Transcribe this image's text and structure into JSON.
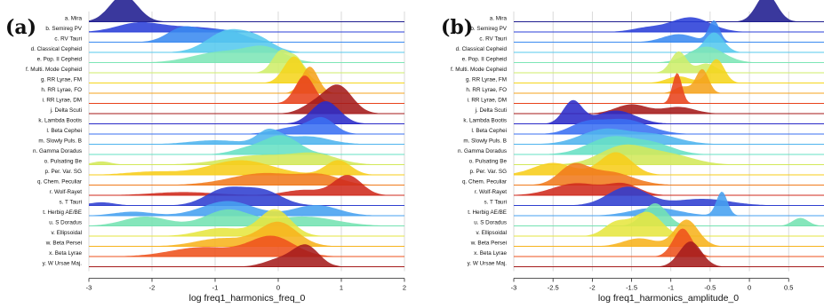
{
  "figure": {
    "panels": [
      {
        "letter": "(a)",
        "xlabel": "log freq1_harmonics_freq_0"
      },
      {
        "letter": "(b)",
        "xlabel": "log freq1_harmonics_amplitude_0"
      }
    ]
  },
  "chart_data": [
    {
      "type": "area",
      "subtype": "ridgeline",
      "panel": "(a)",
      "title": "",
      "xlabel": "log freq1_harmonics_freq_0",
      "ylabel": "",
      "xlim": [
        -3,
        2
      ],
      "xticks": [
        "-3",
        "-2",
        "-1",
        "0",
        "1",
        "2"
      ],
      "grid": true,
      "categories": [
        "a. Mira",
        "b. Semireg PV",
        "c. RV Tauri",
        "d. Classical Cepheid",
        "e. Pop. II Cepheid",
        "f. Multi. Mode Cepheid",
        "g. RR Lyrae, FM",
        "h. RR Lyrae, FO",
        "i. RR Lyrae, DM",
        "j. Delta Scuti",
        "k. Lambda Bootis",
        "l. Beta Cephei",
        "m. Slowly Puls. B",
        "n. Gamma Doradus",
        "o. Pulsating Be",
        "p. Per. Var. SG",
        "q. Chem. Peculiar",
        "r. Wolf-Rayet",
        "s. T Tauri",
        "t. Herbig AE/BE",
        "u. S Doradus",
        "v. Ellipsoidal",
        "w. Beta Persei",
        "x. Beta Lyrae",
        "y. W Ursae Maj."
      ],
      "series": [
        {
          "name": "a. Mira",
          "components": [
            [
              -2.45,
              0.22,
              1.0
            ]
          ]
        },
        {
          "name": "b. Semireg PV",
          "components": [
            [
              -2.2,
              0.35,
              0.35
            ],
            [
              -1.35,
              0.4,
              0.18
            ]
          ]
        },
        {
          "name": "c. RV Tauri",
          "components": [
            [
              -1.5,
              0.25,
              0.55
            ],
            [
              -0.85,
              0.3,
              0.45
            ]
          ]
        },
        {
          "name": "d. Classical Cepheid",
          "components": [
            [
              -0.8,
              0.32,
              0.8
            ],
            [
              -0.3,
              0.25,
              0.4
            ]
          ]
        },
        {
          "name": "e. Pop. II Cepheid",
          "components": [
            [
              -0.9,
              0.45,
              0.4
            ],
            [
              -0.2,
              0.3,
              0.5
            ]
          ]
        },
        {
          "name": "f. Multi. Mode Cepheid",
          "components": [
            [
              0.05,
              0.14,
              0.85
            ],
            [
              0.3,
              0.1,
              0.45
            ]
          ]
        },
        {
          "name": "g. RR Lyrae, FM",
          "components": [
            [
              0.25,
              0.16,
              1.0
            ]
          ]
        },
        {
          "name": "h. RR Lyrae, FO",
          "components": [
            [
              0.5,
              0.13,
              1.0
            ]
          ]
        },
        {
          "name": "i. RR Lyrae, DM",
          "components": [
            [
              0.42,
              0.15,
              1.05
            ]
          ]
        },
        {
          "name": "j. Delta Scuti",
          "components": [
            [
              0.95,
              0.22,
              1.05
            ],
            [
              0.55,
              0.2,
              0.3
            ]
          ]
        },
        {
          "name": "k. Lambda Bootis",
          "components": [
            [
              0.75,
              0.22,
              0.85
            ]
          ]
        },
        {
          "name": "l. Beta Cephei",
          "components": [
            [
              0.7,
              0.2,
              0.55
            ],
            [
              0.25,
              0.3,
              0.25
            ]
          ]
        },
        {
          "name": "m. Slowly Puls. B",
          "components": [
            [
              -0.15,
              0.18,
              0.5
            ],
            [
              0.45,
              0.35,
              0.3
            ],
            [
              -1.0,
              0.4,
              0.15
            ]
          ]
        },
        {
          "name": "n. Gamma Doradus",
          "components": [
            [
              0.05,
              0.28,
              0.7
            ],
            [
              -0.5,
              0.25,
              0.2
            ]
          ]
        },
        {
          "name": "o. Pulsating Be",
          "components": [
            [
              -0.3,
              0.55,
              0.35
            ],
            [
              0.6,
              0.35,
              0.35
            ],
            [
              -2.8,
              0.15,
              0.12
            ]
          ]
        },
        {
          "name": "p. Per. Var. SG",
          "components": [
            [
              -0.6,
              0.5,
              0.55
            ],
            [
              0.95,
              0.2,
              0.55
            ],
            [
              -2.0,
              0.4,
              0.12
            ]
          ]
        },
        {
          "name": "q. Chem. Peculiar",
          "components": [
            [
              -0.2,
              0.55,
              0.45
            ],
            [
              0.7,
              0.3,
              0.3
            ]
          ]
        },
        {
          "name": "r. Wolf-Rayet",
          "components": [
            [
              1.1,
              0.22,
              0.75
            ],
            [
              0.4,
              0.3,
              0.2
            ],
            [
              -1.5,
              0.5,
              0.12
            ]
          ]
        },
        {
          "name": "s. T Tauri",
          "components": [
            [
              -0.85,
              0.3,
              0.6
            ],
            [
              -0.25,
              0.3,
              0.55
            ],
            [
              -2.8,
              0.2,
              0.12
            ]
          ]
        },
        {
          "name": "t. Herbig AE/BE",
          "components": [
            [
              -0.8,
              0.4,
              0.55
            ],
            [
              0.6,
              0.35,
              0.4
            ],
            [
              -2.3,
              0.3,
              0.15
            ]
          ]
        },
        {
          "name": "u. S Doradus",
          "components": [
            [
              -2.1,
              0.35,
              0.35
            ],
            [
              -0.8,
              0.35,
              0.6
            ],
            [
              0.4,
              0.5,
              0.35
            ]
          ]
        },
        {
          "name": "v. Ellipsoidal",
          "components": [
            [
              -0.05,
              0.25,
              1.0
            ],
            [
              -0.9,
              0.35,
              0.3
            ]
          ]
        },
        {
          "name": "w. Beta Persei",
          "components": [
            [
              0.0,
              0.3,
              0.9
            ],
            [
              -0.9,
              0.4,
              0.3
            ]
          ]
        },
        {
          "name": "x. Beta Lyrae",
          "components": [
            [
              -0.1,
              0.35,
              0.75
            ],
            [
              -1.2,
              0.5,
              0.35
            ]
          ]
        },
        {
          "name": "y. W Ursae Maj.",
          "components": [
            [
              0.45,
              0.2,
              0.75
            ],
            [
              0.05,
              0.25,
              0.3
            ]
          ]
        }
      ]
    },
    {
      "type": "area",
      "subtype": "ridgeline",
      "panel": "(b)",
      "title": "",
      "xlabel": "log freq1_harmonics_amplitude_0",
      "ylabel": "",
      "xlim": [
        -3,
        0.95
      ],
      "xticks": [
        "-3",
        "-2.5",
        "-2",
        "-1.5",
        "-1",
        "-0.5",
        "0",
        "0.5"
      ],
      "grid": true,
      "categories": [
        "a. Mira",
        "b. Semireg PV",
        "c. RV Tauri",
        "d. Classical Cepheid",
        "e. Pop. II Cepheid",
        "f. Multi. Mode Cepheid",
        "g. RR Lyrae, FM",
        "h. RR Lyrae, FO",
        "i. RR Lyrae, DM",
        "j. Delta Scuti",
        "k. Lambda Bootis",
        "l. Beta Cephei",
        "m. Slowly Puls. B",
        "n. Gamma Doradus",
        "o. Pulsating Be",
        "p. Per. Var. SG",
        "q. Chem. Peculiar",
        "r. Wolf-Rayet",
        "s. T Tauri",
        "t. Herbig AE/BE",
        "u. S Doradus",
        "v. Ellipsoidal",
        "w. Beta Persei",
        "x. Beta Lyrae",
        "y. W Ursae Maj."
      ],
      "series": [
        {
          "name": "a. Mira",
          "components": [
            [
              0.22,
              0.13,
              1.05
            ]
          ]
        },
        {
          "name": "b. Semireg PV",
          "components": [
            [
              -0.75,
              0.25,
              0.55
            ],
            [
              -1.3,
              0.2,
              0.15
            ]
          ]
        },
        {
          "name": "c. RV Tauri",
          "components": [
            [
              -0.45,
              0.07,
              0.8
            ],
            [
              -0.9,
              0.2,
              0.3
            ]
          ]
        },
        {
          "name": "d. Classical Cepheid",
          "components": [
            [
              -0.45,
              0.12,
              0.75
            ]
          ]
        },
        {
          "name": "e. Pop. II Cepheid",
          "components": [
            [
              -0.55,
              0.22,
              0.6
            ]
          ]
        },
        {
          "name": "f. Multi. Mode Cepheid",
          "components": [
            [
              -0.9,
              0.1,
              0.8
            ],
            [
              -0.55,
              0.12,
              0.35
            ]
          ]
        },
        {
          "name": "g. RR Lyrae, FM",
          "components": [
            [
              -0.42,
              0.1,
              0.9
            ],
            [
              -0.9,
              0.15,
              0.25
            ]
          ]
        },
        {
          "name": "h. RR Lyrae, FO",
          "components": [
            [
              -0.6,
              0.08,
              0.9
            ],
            [
              -0.85,
              0.1,
              0.25
            ]
          ]
        },
        {
          "name": "i. RR Lyrae, DM",
          "components": [
            [
              -0.92,
              0.06,
              1.15
            ]
          ]
        },
        {
          "name": "j. Delta Scuti",
          "components": [
            [
              -1.5,
              0.2,
              0.35
            ],
            [
              -0.9,
              0.2,
              0.25
            ]
          ]
        },
        {
          "name": "k. Lambda Bootis",
          "components": [
            [
              -2.25,
              0.12,
              0.85
            ],
            [
              -1.7,
              0.25,
              0.5
            ]
          ]
        },
        {
          "name": "l. Beta Cephei",
          "components": [
            [
              -1.6,
              0.3,
              0.55
            ],
            [
              -2.1,
              0.2,
              0.35
            ]
          ]
        },
        {
          "name": "m. Slowly Puls. B",
          "components": [
            [
              -1.85,
              0.3,
              0.55
            ],
            [
              -1.2,
              0.3,
              0.35
            ]
          ]
        },
        {
          "name": "n. Gamma Doradus",
          "components": [
            [
              -1.75,
              0.3,
              0.65
            ],
            [
              -1.2,
              0.25,
              0.35
            ]
          ]
        },
        {
          "name": "o. Pulsating Be",
          "components": [
            [
              -1.6,
              0.3,
              0.7
            ],
            [
              -1.0,
              0.3,
              0.35
            ]
          ]
        },
        {
          "name": "p. Per. Var. SG",
          "components": [
            [
              -1.7,
              0.2,
              0.85
            ],
            [
              -2.5,
              0.25,
              0.45
            ]
          ]
        },
        {
          "name": "q. Chem. Peculiar",
          "components": [
            [
              -2.25,
              0.18,
              0.65
            ],
            [
              -1.8,
              0.3,
              0.5
            ]
          ]
        },
        {
          "name": "r. Wolf-Rayet",
          "components": [
            [
              -2.2,
              0.3,
              0.45
            ],
            [
              -1.6,
              0.2,
              0.4
            ]
          ]
        },
        {
          "name": "s. T Tauri",
          "components": [
            [
              -1.55,
              0.25,
              0.7
            ],
            [
              -0.6,
              0.35,
              0.25
            ]
          ]
        },
        {
          "name": "t. Herbig AE/BE",
          "components": [
            [
              -0.35,
              0.07,
              0.9
            ],
            [
              -1.2,
              0.3,
              0.3
            ]
          ]
        },
        {
          "name": "u. S Doradus",
          "components": [
            [
              -1.2,
              0.15,
              0.85
            ],
            [
              0.65,
              0.1,
              0.3
            ]
          ]
        },
        {
          "name": "v. Ellipsoidal",
          "components": [
            [
              -1.3,
              0.18,
              0.9
            ],
            [
              -1.7,
              0.15,
              0.5
            ]
          ]
        },
        {
          "name": "w. Beta Persei",
          "components": [
            [
              -0.8,
              0.15,
              1.0
            ],
            [
              -1.4,
              0.2,
              0.3
            ]
          ]
        },
        {
          "name": "x. Beta Lyrae",
          "components": [
            [
              -0.85,
              0.12,
              1.05
            ]
          ]
        },
        {
          "name": "y. W Ursae Maj.",
          "components": [
            [
              -0.75,
              0.14,
              0.95
            ]
          ]
        }
      ]
    }
  ]
}
